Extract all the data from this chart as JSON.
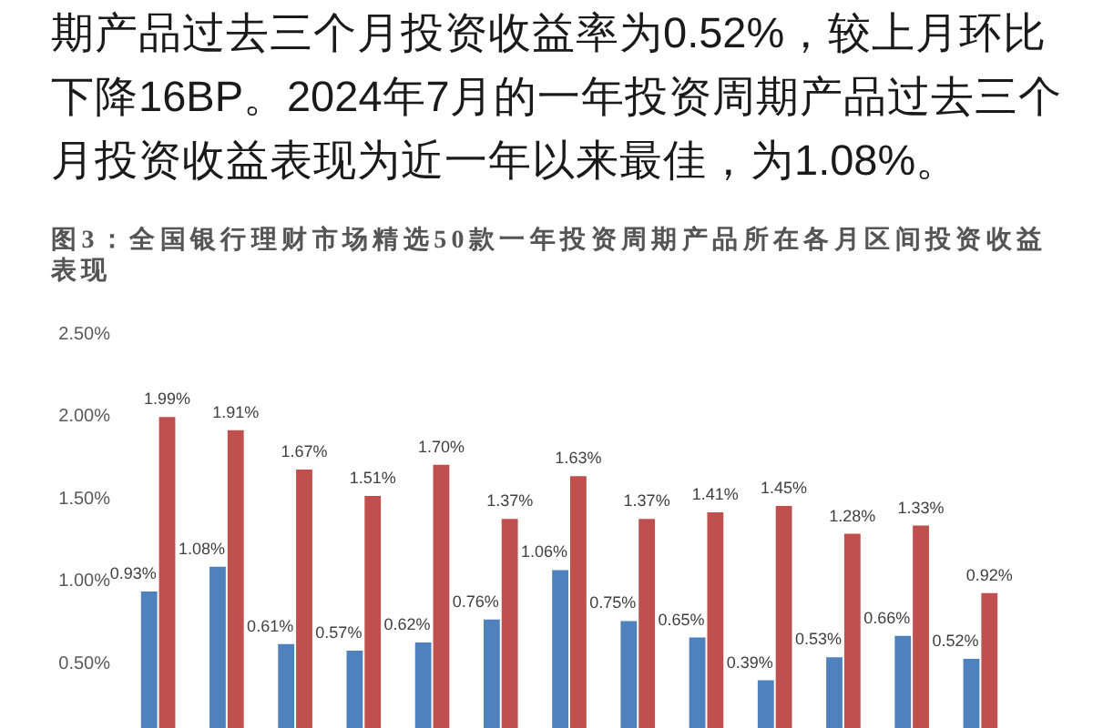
{
  "chart_data": {
    "type": "bar",
    "title": "图3：全国银行理财市场精选50款一年投资周期产品所在各月区间投资收益表现",
    "annotations": [
      "期产品过去三个月投资收益率为0.52%，较上月环比下降16BP。2024年7月的一年投资周期产品过去三个月投资收益表现为近一年以来最佳，为1.08%。"
    ],
    "categories": [
      null,
      null,
      null,
      null,
      null,
      null,
      null,
      null,
      null,
      null,
      null,
      null,
      null
    ],
    "series": [
      {
        "color": "#4f81bd",
        "values": [
          0.93,
          1.08,
          0.61,
          0.57,
          0.62,
          0.76,
          1.06,
          0.75,
          0.65,
          0.39,
          0.53,
          0.66,
          0.52
        ],
        "value_labels": [
          "0.93%",
          "1.08%",
          "0.61%",
          "0.57%",
          "0.62%",
          "0.76%",
          "1.06%",
          "0.75%",
          "0.65%",
          "0.39%",
          "0.53%",
          "0.66%",
          "0.52%"
        ]
      },
      {
        "color": "#c0504d",
        "values": [
          1.99,
          1.91,
          1.67,
          1.51,
          1.7,
          1.37,
          1.63,
          1.37,
          1.41,
          1.45,
          1.28,
          1.33,
          0.92
        ],
        "value_labels": [
          "1.99%",
          "1.91%",
          "1.67%",
          "1.51%",
          "1.70%",
          "1.37%",
          "1.63%",
          "1.37%",
          "1.41%",
          "1.45%",
          "1.28%",
          "1.33%",
          "0.92%"
        ]
      }
    ],
    "ylim": [
      0.1,
      2.5
    ],
    "yticks": [
      {
        "value": 0.5,
        "label": "0.50%"
      },
      {
        "value": 1.0,
        "label": "1.00%"
      },
      {
        "value": 1.5,
        "label": "1.50%"
      },
      {
        "value": 2.0,
        "label": "2.00%"
      },
      {
        "value": 2.5,
        "label": "2.50%"
      }
    ]
  }
}
